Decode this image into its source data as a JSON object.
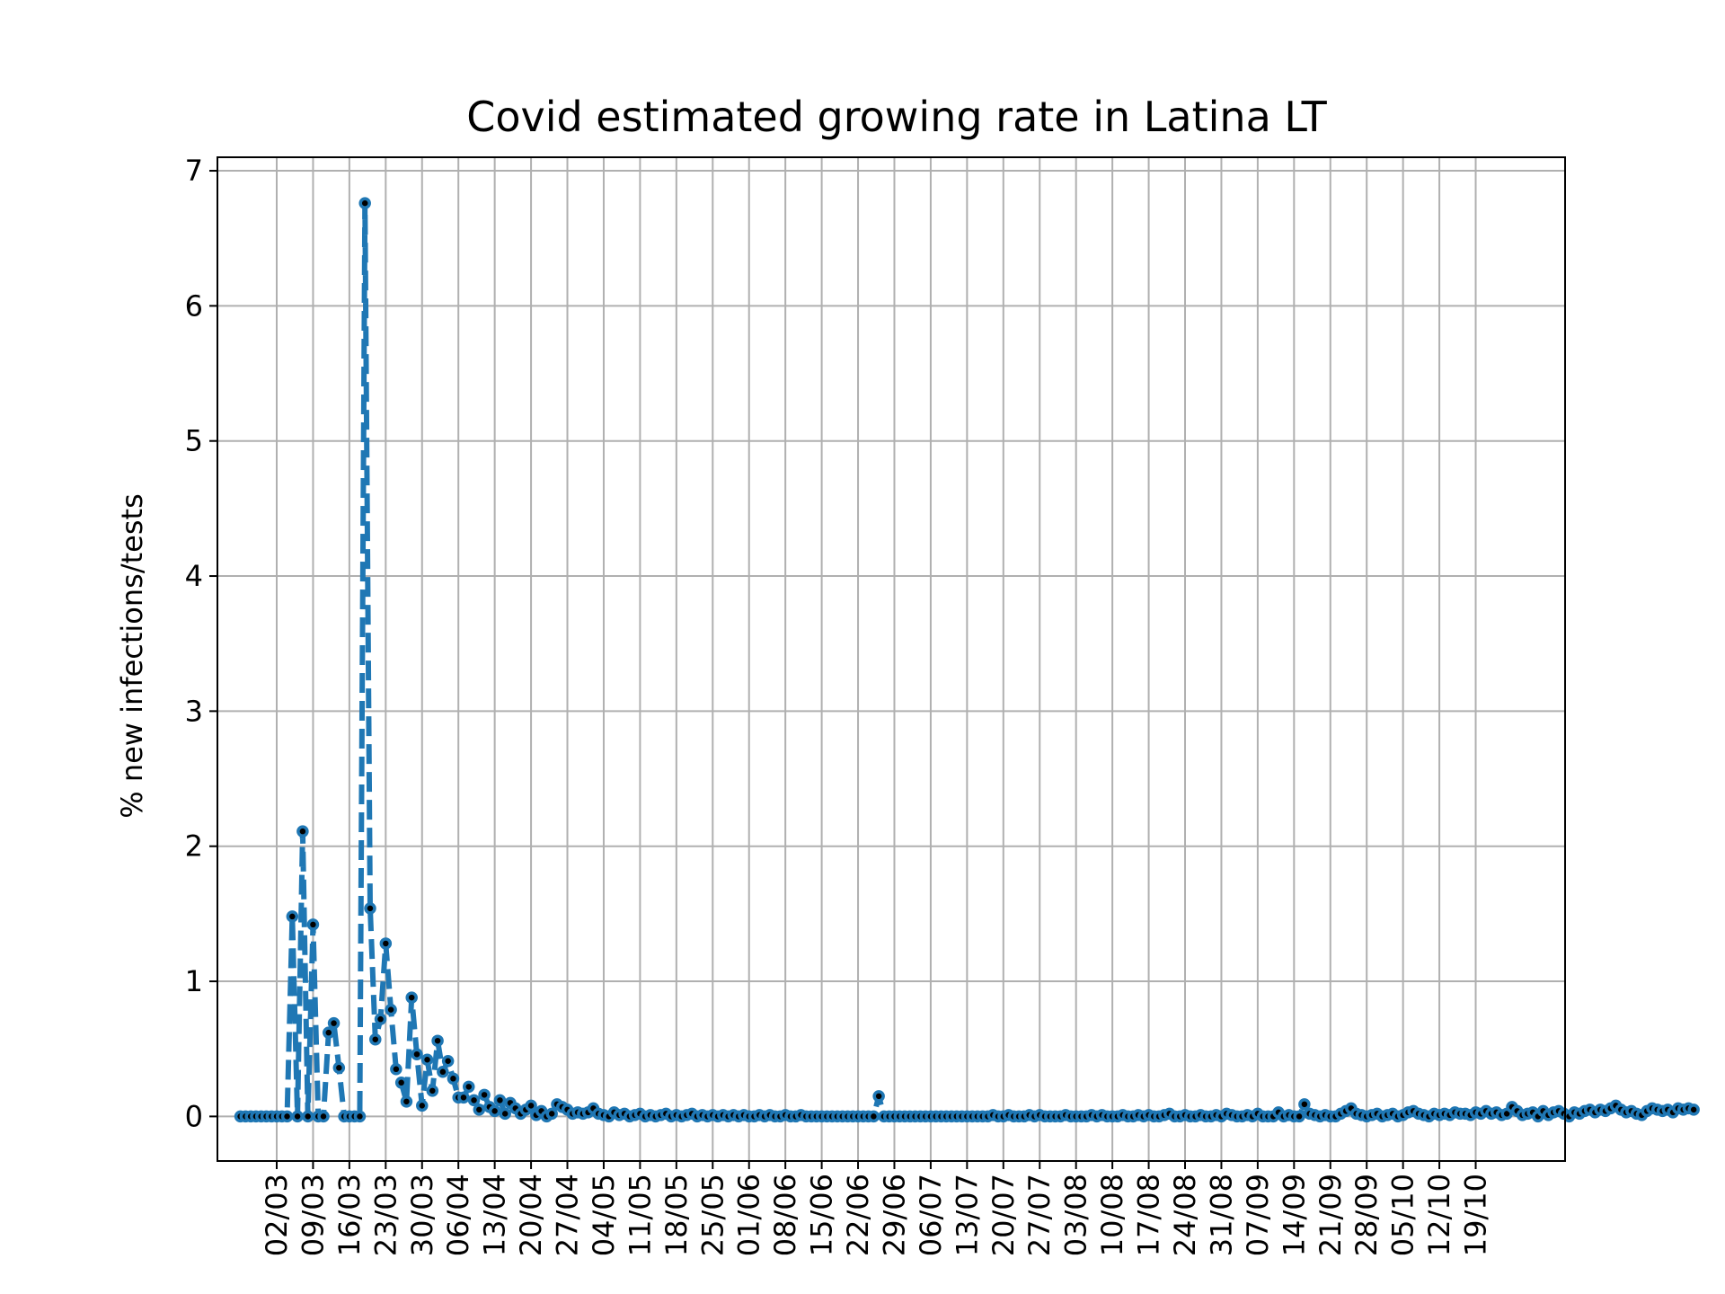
{
  "chart_data": {
    "type": "line",
    "title": "Covid estimated growing rate in Latina LT",
    "xlabel": "",
    "ylabel": "% new infections/tests",
    "ylim": [
      -0.33,
      7.1
    ],
    "yticks": [
      0,
      1,
      2,
      3,
      4,
      5,
      6,
      7
    ],
    "grid": true,
    "x_start": "24/02",
    "x_ticks": [
      "02/03",
      "09/03",
      "16/03",
      "23/03",
      "30/03",
      "06/04",
      "13/04",
      "20/04",
      "27/04",
      "04/05",
      "11/05",
      "18/05",
      "25/05",
      "01/06",
      "08/06",
      "15/06",
      "22/06",
      "29/06",
      "06/07",
      "13/07",
      "20/07",
      "27/07",
      "03/08",
      "10/08",
      "17/08",
      "24/08",
      "31/08",
      "07/09",
      "14/09",
      "21/09",
      "28/09",
      "05/10",
      "12/10",
      "19/10"
    ],
    "style": {
      "line_color": "#1f77b4",
      "line_style": "dashed",
      "marker": "circle",
      "marker_face": "#000000",
      "marker_edge": "#1f77b4"
    },
    "series": [
      {
        "name": "",
        "values": [
          0,
          0,
          0,
          0,
          0,
          0,
          0,
          0,
          0,
          0,
          1.48,
          0,
          2.11,
          0,
          1.42,
          0,
          0,
          0.62,
          0.69,
          0.36,
          0,
          0,
          0,
          0,
          6.76,
          1.54,
          0.57,
          0.72,
          1.28,
          0.79,
          0.35,
          0.25,
          0.11,
          0.88,
          0.46,
          0.08,
          0.42,
          0.19,
          0.56,
          0.33,
          0.41,
          0.28,
          0.14,
          0.14,
          0.22,
          0.12,
          0.05,
          0.16,
          0.07,
          0.04,
          0.12,
          0.02,
          0.1,
          0.06,
          0.02,
          0.05,
          0.08,
          0.01,
          0.04,
          0.0,
          0.02,
          0.09,
          0.07,
          0.05,
          0.02,
          0.03,
          0.02,
          0.03,
          0.06,
          0.02,
          0.01,
          0.0,
          0.03,
          0.01,
          0.02,
          0.0,
          0.01,
          0.02,
          0.0,
          0.01,
          0.0,
          0.01,
          0.02,
          0.0,
          0.01,
          0.0,
          0.01,
          0.02,
          0.0,
          0.01,
          0.0,
          0.01,
          0.0,
          0.01,
          0.0,
          0.01,
          0.0,
          0.01,
          0.0,
          0.0,
          0.01,
          0.0,
          0.01,
          0.0,
          0.0,
          0.01,
          0.0,
          0.0,
          0.01,
          0.0,
          0.0,
          0.0,
          0.0,
          0.0,
          0.0,
          0.0,
          0.0,
          0.0,
          0.0,
          0.0,
          0.0,
          0.0,
          0.0,
          0.15,
          0.0,
          0.0,
          0.0,
          0.0,
          0.0,
          0.0,
          0.0,
          0.0,
          0.0,
          0.0,
          0.0,
          0.0,
          0.0,
          0.0,
          0.0,
          0.0,
          0.0,
          0.0,
          0.0,
          0.0,
          0.0,
          0.01,
          0.0,
          0.0,
          0.01,
          0.0,
          0.0,
          0.0,
          0.01,
          0.0,
          0.01,
          0.0,
          0.0,
          0.0,
          0.0,
          0.01,
          0.0,
          0.0,
          0.0,
          0.0,
          0.01,
          0.0,
          0.01,
          0.0,
          0.0,
          0.0,
          0.01,
          0.0,
          0.0,
          0.01,
          0.0,
          0.01,
          0.0,
          0.0,
          0.01,
          0.02,
          0.0,
          0.0,
          0.01,
          0.0,
          0.0,
          0.01,
          0.0,
          0.0,
          0.01,
          0.0,
          0.02,
          0.01,
          0.0,
          0.0,
          0.01,
          0.0,
          0.02,
          0.0,
          0.0,
          0.0,
          0.03,
          0.0,
          0.01,
          0.0,
          0.0,
          0.09,
          0.02,
          0.01,
          0.0,
          0.01,
          0.0,
          0.0,
          0.02,
          0.04,
          0.06,
          0.02,
          0.01,
          0.0,
          0.01,
          0.02,
          0.0,
          0.01,
          0.02,
          0.0,
          0.01,
          0.03,
          0.04,
          0.02,
          0.01,
          0.0,
          0.02,
          0.01,
          0.02,
          0.01,
          0.03,
          0.02,
          0.02,
          0.01,
          0.03,
          0.02,
          0.04,
          0.02,
          0.03,
          0.01,
          0.02,
          0.07,
          0.04,
          0.01,
          0.02,
          0.03,
          0.0,
          0.04,
          0.01,
          0.03,
          0.04,
          0.02,
          0.0,
          0.03,
          0.02,
          0.04,
          0.05,
          0.03,
          0.05,
          0.04,
          0.06,
          0.08,
          0.05,
          0.03,
          0.04,
          0.02,
          0.01,
          0.04,
          0.06,
          0.05,
          0.04,
          0.05,
          0.03,
          0.06,
          0.05,
          0.06,
          0.05
        ]
      }
    ]
  }
}
